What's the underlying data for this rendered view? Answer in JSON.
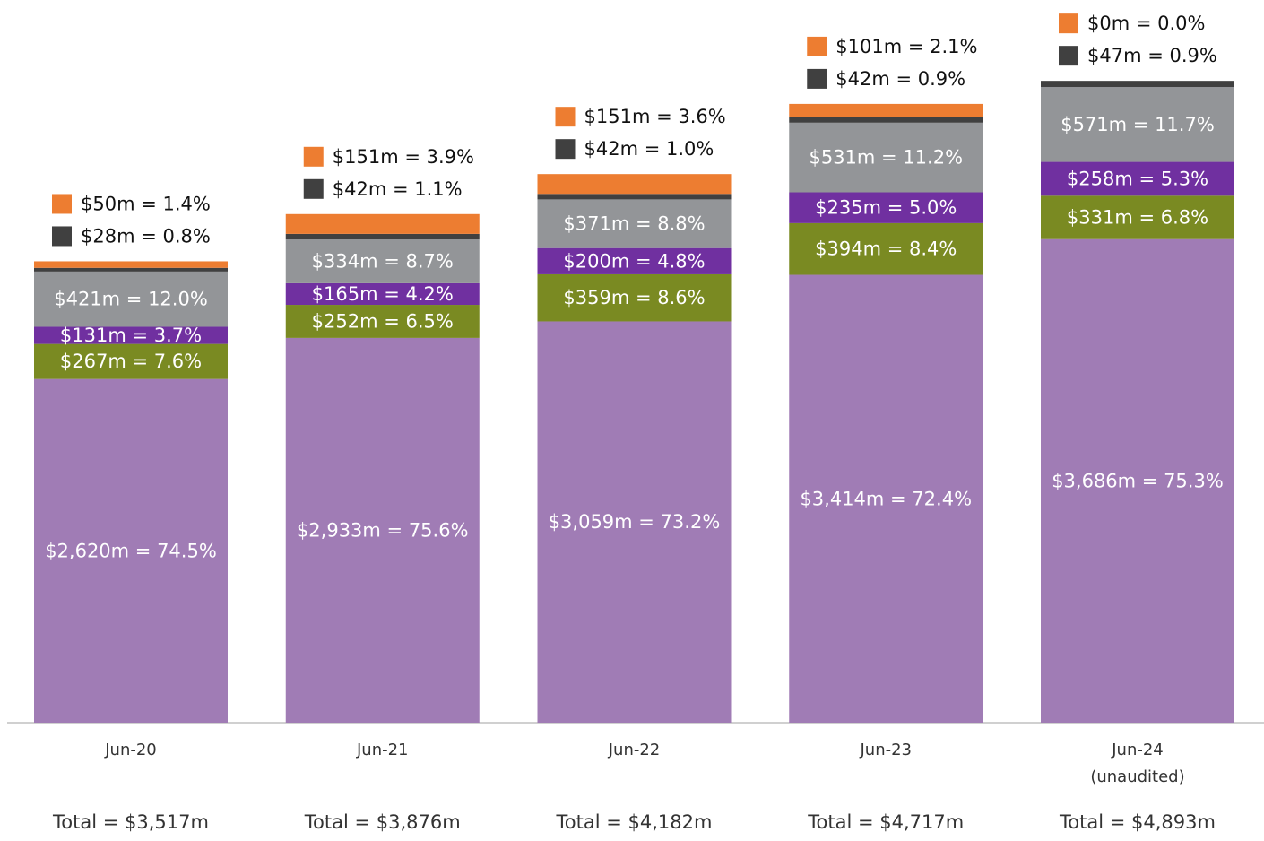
{
  "chart_data": {
    "type": "stacked_bar",
    "categories": [
      "Jun-20",
      "Jun-21",
      "Jun-22",
      "Jun-23",
      "Jun-24\n(unaudited)"
    ],
    "ylim": [
      0,
      5000
    ],
    "series": [
      {
        "color": "#a07cb5",
        "values": [
          2620,
          2933,
          3059,
          3414,
          3686
        ],
        "value_labels": [
          "$2,620m = 74.5%",
          "$2,933m = 75.6%",
          "$3,059m = 73.2%",
          "$3,414m = 72.4%",
          "$3,686m = 75.3%"
        ]
      },
      {
        "color": "#7a8a22",
        "values": [
          267,
          252,
          359,
          394,
          331
        ],
        "value_labels": [
          "$267m = 7.6%",
          "$252m = 6.5%",
          "$359m = 8.6%",
          "$394m = 8.4%",
          "$331m = 6.8%"
        ]
      },
      {
        "color": "#7030a0",
        "values": [
          131,
          165,
          200,
          235,
          258
        ],
        "value_labels": [
          "$131m = 3.7%",
          "$165m = 4.2%",
          "$200m = 4.8%",
          "$235m = 5.0%",
          "$258m = 5.3%"
        ]
      },
      {
        "color": "#939598",
        "values": [
          421,
          334,
          371,
          531,
          571
        ],
        "value_labels": [
          "$421m = 12.0%",
          "$334m = 8.7%",
          "$371m = 8.8%",
          "$531m = 11.2%",
          "$571m = 11.7%"
        ]
      },
      {
        "color": "#404040",
        "values": [
          28,
          42,
          42,
          42,
          47
        ],
        "value_labels": [
          "$28m = 0.8%",
          "$42m = 1.1%",
          "$42m = 1.0%",
          "$42m = 0.9%",
          "$47m = 0.9%"
        ],
        "label_position": "outside"
      },
      {
        "color": "#ed7d31",
        "values": [
          50,
          151,
          151,
          101,
          0
        ],
        "value_labels": [
          "$50m = 1.4%",
          "$151m = 3.9%",
          "$151m = 3.6%",
          "$101m = 2.1%",
          "$0m = 0.0%"
        ],
        "label_position": "outside"
      }
    ],
    "total_labels": [
      "Total = $3,517m",
      "Total = $3,876m",
      "Total = $4,182m",
      "Total = $4,717m",
      "Total = $4,893m"
    ]
  }
}
